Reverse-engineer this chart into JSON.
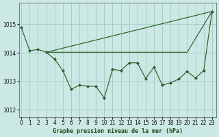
{
  "title": "Graphe pression niveau de la mer (hPa)",
  "bg_color": "#cce8e4",
  "line_color": "#2a5e2a",
  "grid_color": "#9dccc8",
  "ylim": [
    1011.75,
    1015.75
  ],
  "yticks": [
    1012,
    1013,
    1014,
    1015
  ],
  "xlim": [
    -0.3,
    23.5
  ],
  "xticks": [
    0,
    1,
    2,
    3,
    4,
    5,
    6,
    7,
    8,
    9,
    10,
    11,
    12,
    13,
    14,
    15,
    16,
    17,
    18,
    19,
    20,
    21,
    22,
    23
  ],
  "curve_x": [
    0,
    1,
    2,
    3,
    4,
    5,
    6,
    7,
    8,
    9,
    10,
    11,
    12,
    13,
    14,
    15,
    16,
    17,
    18,
    19,
    20,
    21,
    22,
    23
  ],
  "curve_y": [
    1014.88,
    1014.07,
    1014.12,
    1014.02,
    1013.78,
    1013.38,
    1012.72,
    1012.87,
    1012.83,
    1012.83,
    1012.42,
    1013.42,
    1013.38,
    1013.65,
    1013.65,
    1013.1,
    1013.5,
    1012.87,
    1012.95,
    1013.08,
    1013.35,
    1013.12,
    1013.38,
    1015.45
  ],
  "upper_line_x": [
    3,
    23
  ],
  "upper_line_y": [
    1014.02,
    1015.45
  ],
  "lower_line_x": [
    3,
    20,
    23
  ],
  "lower_line_y": [
    1014.02,
    1014.02,
    1015.45
  ],
  "title_fontsize": 6,
  "tick_fontsize": 5.5
}
